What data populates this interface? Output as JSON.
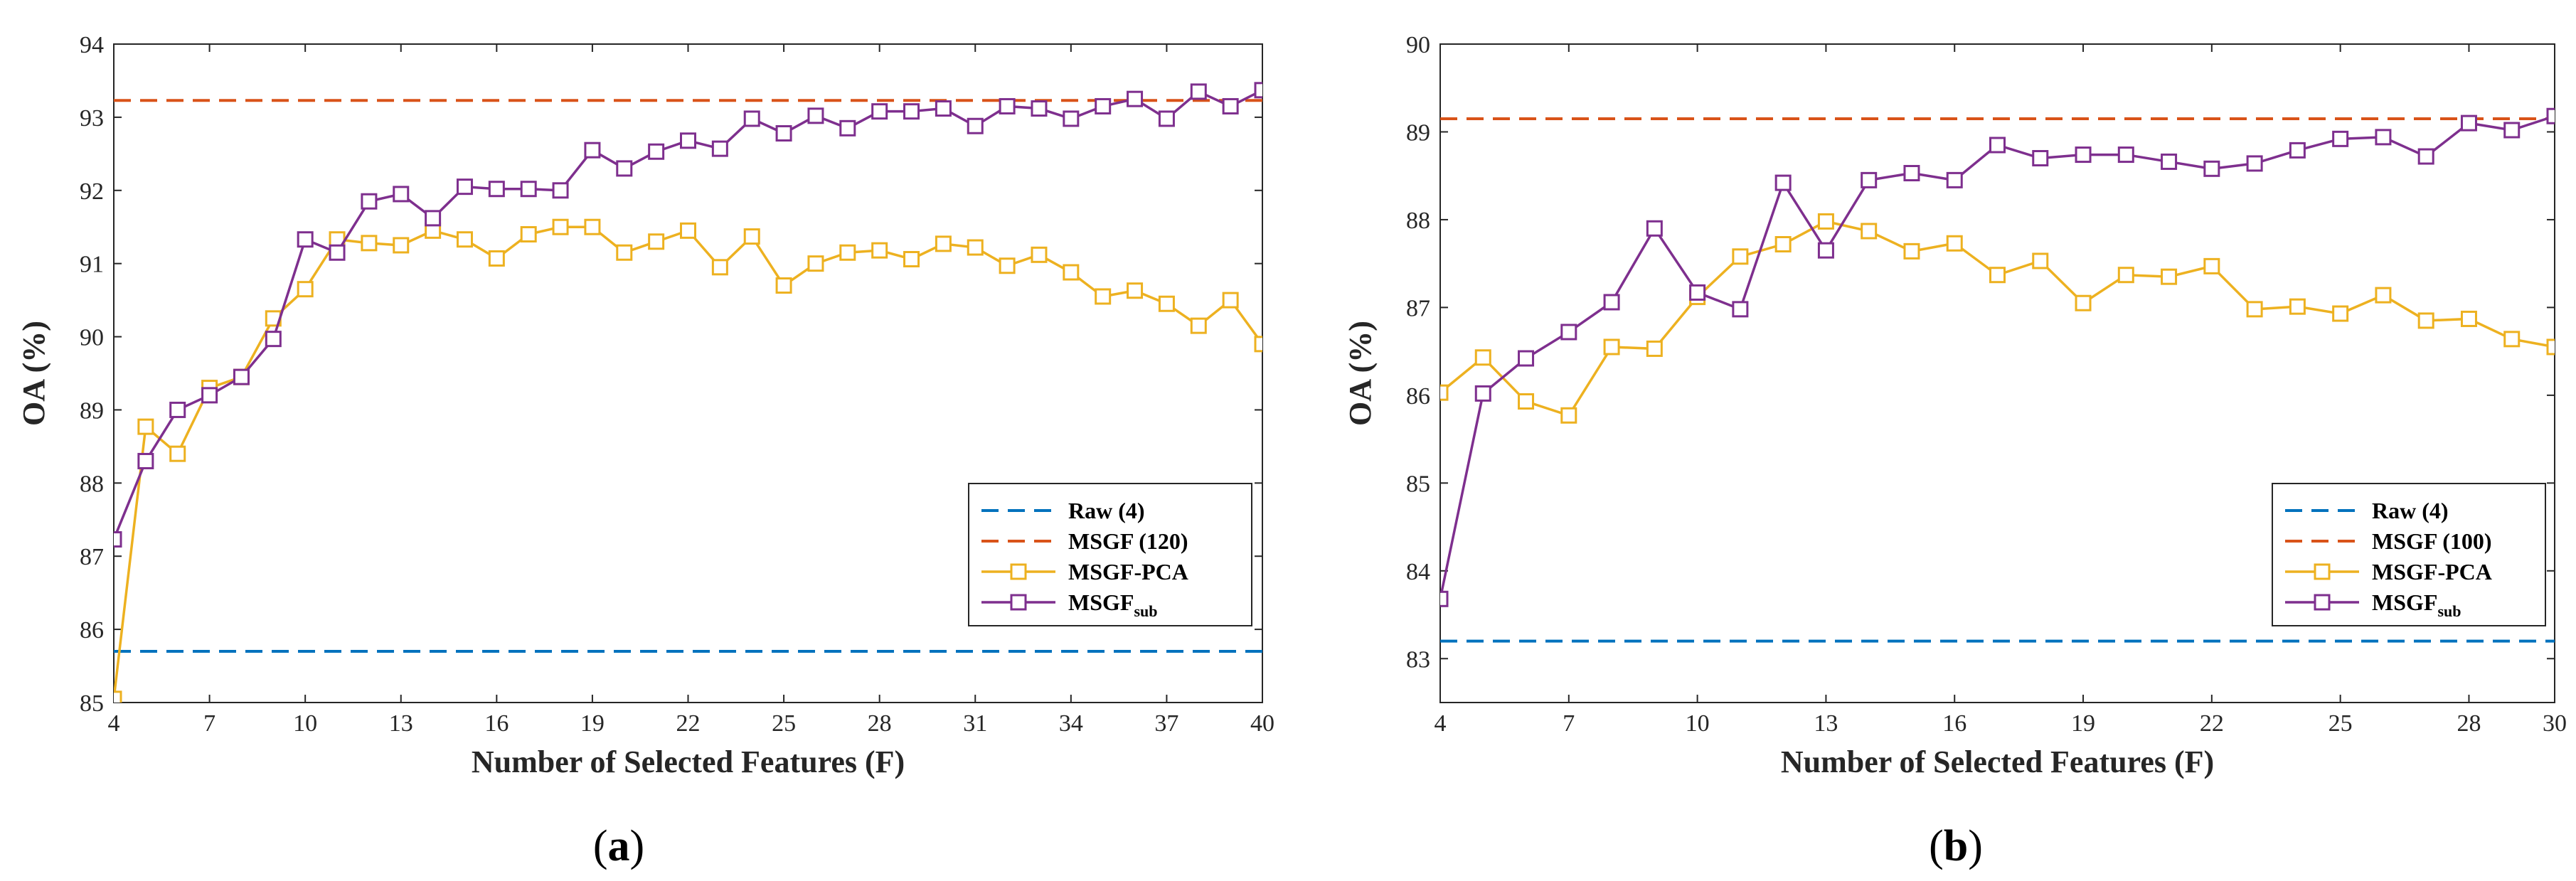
{
  "figure_labels": {
    "a": "a",
    "b": "b"
  },
  "colors": {
    "raw": "#0072BD",
    "msgf": "#D95319",
    "pca": "#EDB120",
    "sub": "#7E2F8E",
    "axis": "#262626"
  },
  "chart_data": [
    {
      "type": "line",
      "xlabel": "Number of Selected Features (F)",
      "ylabel": "OA (%)",
      "xlim": [
        4,
        40
      ],
      "ylim": [
        85,
        94
      ],
      "xticks": [
        4,
        7,
        10,
        13,
        16,
        19,
        22,
        25,
        28,
        31,
        34,
        37,
        40
      ],
      "yticks": [
        85,
        86,
        87,
        88,
        89,
        90,
        91,
        92,
        93,
        94
      ],
      "legend_position": "lower-right",
      "grid": false,
      "series": [
        {
          "name": "Raw (4)",
          "style": "dashed",
          "y": 85.7
        },
        {
          "name": "MSGF (120)",
          "style": "dashed",
          "y": 93.23
        },
        {
          "name": "MSGF-PCA",
          "style": "marker",
          "x": [
            4,
            5,
            6,
            7,
            8,
            9,
            10,
            11,
            12,
            13,
            14,
            15,
            16,
            17,
            18,
            19,
            20,
            21,
            22,
            23,
            24,
            25,
            26,
            27,
            28,
            29,
            30,
            31,
            32,
            33,
            34,
            35,
            36,
            37,
            38,
            39,
            40
          ],
          "values": [
            85.05,
            88.77,
            88.4,
            89.3,
            89.45,
            90.25,
            90.65,
            91.33,
            91.28,
            91.25,
            91.45,
            91.33,
            91.07,
            91.4,
            91.5,
            91.5,
            91.15,
            91.3,
            91.45,
            90.95,
            91.37,
            90.7,
            91.0,
            91.15,
            91.18,
            91.06,
            91.27,
            91.22,
            90.97,
            91.12,
            90.88,
            90.55,
            90.63,
            90.45,
            90.15,
            90.5,
            89.9
          ]
        },
        {
          "name": "MSGF",
          "name_subscript": "sub",
          "style": "marker",
          "x": [
            4,
            5,
            6,
            7,
            8,
            9,
            10,
            11,
            12,
            13,
            14,
            15,
            16,
            17,
            18,
            19,
            20,
            21,
            22,
            23,
            24,
            25,
            26,
            27,
            28,
            29,
            30,
            31,
            32,
            33,
            34,
            35,
            36,
            37,
            38,
            39,
            40
          ],
          "values": [
            87.23,
            88.3,
            89.0,
            89.2,
            89.45,
            89.97,
            91.33,
            91.15,
            91.85,
            91.95,
            91.62,
            92.05,
            92.02,
            92.02,
            92.0,
            92.55,
            92.3,
            92.53,
            92.68,
            92.57,
            92.98,
            92.78,
            93.02,
            92.85,
            93.08,
            93.08,
            93.12,
            92.88,
            93.15,
            93.12,
            92.98,
            93.15,
            93.25,
            92.98,
            93.35,
            93.15,
            93.37
          ]
        }
      ]
    },
    {
      "type": "line",
      "xlabel": "Number of Selected Features (F)",
      "ylabel": "OA (%)",
      "xlim": [
        4,
        30
      ],
      "ylim": [
        82.5,
        90
      ],
      "xticks": [
        4,
        7,
        10,
        13,
        16,
        19,
        22,
        25,
        28,
        30
      ],
      "yticks": [
        83,
        84,
        85,
        86,
        87,
        88,
        89,
        90
      ],
      "legend_position": "lower-right",
      "grid": false,
      "series": [
        {
          "name": "Raw (4)",
          "style": "dashed",
          "y": 83.2
        },
        {
          "name": "MSGF (100)",
          "style": "dashed",
          "y": 89.15
        },
        {
          "name": "MSGF-PCA",
          "style": "marker",
          "x": [
            4,
            5,
            6,
            7,
            8,
            9,
            10,
            11,
            12,
            13,
            14,
            15,
            16,
            17,
            18,
            19,
            20,
            21,
            22,
            23,
            24,
            25,
            26,
            27,
            28,
            29,
            30
          ],
          "values": [
            86.03,
            86.43,
            85.93,
            85.77,
            86.55,
            86.53,
            87.12,
            87.58,
            87.72,
            87.98,
            87.87,
            87.64,
            87.73,
            87.37,
            87.53,
            87.05,
            87.37,
            87.35,
            87.47,
            86.98,
            87.01,
            86.93,
            87.14,
            86.85,
            86.87,
            86.64,
            86.55
          ]
        },
        {
          "name": "MSGF",
          "name_subscript": "sub",
          "style": "marker",
          "x": [
            4,
            5,
            6,
            7,
            8,
            9,
            10,
            11,
            12,
            13,
            14,
            15,
            16,
            17,
            18,
            19,
            20,
            21,
            22,
            23,
            24,
            25,
            26,
            27,
            28,
            29,
            30
          ],
          "values": [
            83.68,
            86.02,
            86.42,
            86.72,
            87.06,
            87.9,
            87.17,
            86.98,
            88.42,
            87.65,
            88.45,
            88.53,
            88.45,
            88.85,
            88.7,
            88.74,
            88.74,
            88.66,
            88.58,
            88.64,
            88.79,
            88.92,
            88.94,
            88.72,
            89.1,
            89.02,
            89.18
          ]
        }
      ]
    }
  ]
}
